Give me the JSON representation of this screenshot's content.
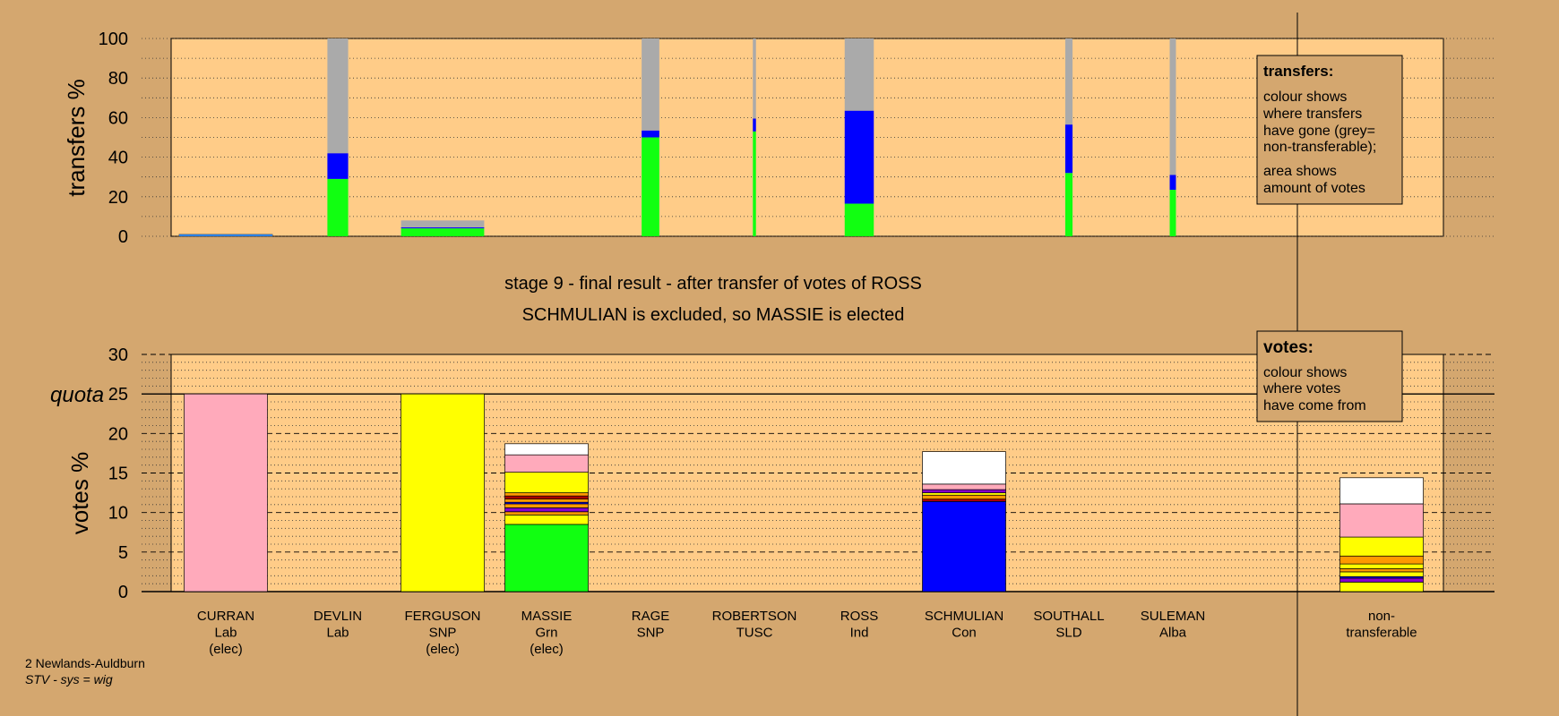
{
  "title_line1": "stage 9 - final result - after transfer of votes of ROSS",
  "title_line2": "SCHMULIAN is excluded, so MASSIE is elected",
  "footer": {
    "line1": "2 Newlands-Auldburn",
    "line2": "STV - sys = wig"
  },
  "legend_transfers": {
    "heading": "transfers:",
    "lines": [
      "colour shows",
      "where transfers",
      "have gone (grey=",
      "non-transferable);",
      "area shows",
      "amount of votes"
    ]
  },
  "legend_votes": {
    "heading": "votes:",
    "lines": [
      "colour shows",
      "where votes",
      "have come from"
    ]
  },
  "colors": {
    "background": "#d4a76f",
    "plot_bg": "#ffcc88",
    "Lab": "#ffaabb",
    "SNP": "#ffff00",
    "Grn": "#11ff11",
    "Con": "#0000ff",
    "Ind": "#ffffff",
    "Alba": "#8800cc",
    "SLD": "#ff9900",
    "TUSC": "#aa0000",
    "nontransferable": "#aaaaaa",
    "ross": "#2288ff"
  },
  "chart_data": [
    {
      "type": "bar",
      "ylabel": "transfers %",
      "ylim": [
        0,
        100
      ],
      "yticks": [
        0,
        20,
        40,
        60,
        80,
        100
      ],
      "grid": "dotted",
      "candidates": [
        "CURRAN",
        "DEVLIN",
        "FERGUSON",
        "MASSIE",
        "RAGE",
        "ROBERTSON",
        "ROSS",
        "SCHMULIAN",
        "SOUTHALL",
        "SULEMAN"
      ],
      "bars": [
        {
          "candidate": "CURRAN",
          "width_rel": 0.9,
          "segments": [
            {
              "color": "ross",
              "value": 1
            }
          ]
        },
        {
          "candidate": "DEVLIN",
          "width_rel": 0.2,
          "segments": [
            {
              "color": "Grn",
              "value": 29
            },
            {
              "color": "Con",
              "value": 13
            },
            {
              "color": "nontransferable",
              "value": 58
            }
          ]
        },
        {
          "candidate": "FERGUSON",
          "width_rel": 0.8,
          "segments": [
            {
              "color": "Grn",
              "value": 4
            },
            {
              "color": "Con",
              "value": 0.5
            },
            {
              "color": "nontransferable",
              "value": 3.5
            }
          ]
        },
        {
          "candidate": "RAGE",
          "width_rel": 0.17,
          "segments": [
            {
              "color": "Grn",
              "value": 50
            },
            {
              "color": "Con",
              "value": 3.5
            },
            {
              "color": "nontransferable",
              "value": 46.5
            }
          ]
        },
        {
          "candidate": "ROBERTSON",
          "width_rel": 0.03,
          "segments": [
            {
              "color": "Grn",
              "value": 53
            },
            {
              "color": "Con",
              "value": 6.5
            },
            {
              "color": "nontransferable",
              "value": 40.5
            }
          ]
        },
        {
          "candidate": "ROSS",
          "width_rel": 0.28,
          "segments": [
            {
              "color": "Grn",
              "value": 16.5
            },
            {
              "color": "Con",
              "value": 47
            },
            {
              "color": "nontransferable",
              "value": 36.5
            }
          ]
        },
        {
          "candidate": "SOUTHALL",
          "width_rel": 0.07,
          "segments": [
            {
              "color": "Grn",
              "value": 32
            },
            {
              "color": "Con",
              "value": 24.5
            },
            {
              "color": "nontransferable",
              "value": 43.5
            }
          ]
        },
        {
          "candidate": "SULEMAN",
          "width_rel": 0.06,
          "segments": [
            {
              "color": "Grn",
              "value": 23.5
            },
            {
              "color": "Con",
              "value": 7.5
            },
            {
              "color": "nontransferable",
              "value": 69
            }
          ]
        }
      ]
    },
    {
      "type": "bar",
      "ylabel": "votes %",
      "ylim": [
        0,
        30
      ],
      "yticks": [
        0,
        5,
        10,
        15,
        20,
        25,
        30
      ],
      "quota": 25,
      "quota_label": "quota",
      "grid": "dotted",
      "categories": [
        {
          "name": "CURRAN",
          "party": "Lab",
          "status": "(elec)"
        },
        {
          "name": "DEVLIN",
          "party": "Lab",
          "status": ""
        },
        {
          "name": "FERGUSON",
          "party": "SNP",
          "status": "(elec)"
        },
        {
          "name": "MASSIE",
          "party": "Grn",
          "status": "(elec)"
        },
        {
          "name": "RAGE",
          "party": "SNP",
          "status": ""
        },
        {
          "name": "ROBERTSON",
          "party": "TUSC",
          "status": ""
        },
        {
          "name": "ROSS",
          "party": "Ind",
          "status": ""
        },
        {
          "name": "SCHMULIAN",
          "party": "Con",
          "status": ""
        },
        {
          "name": "SOUTHALL",
          "party": "SLD",
          "status": ""
        },
        {
          "name": "SULEMAN",
          "party": "Alba",
          "status": ""
        },
        {
          "name": "non-",
          "party": "transferable",
          "status": ""
        }
      ],
      "stacks": [
        {
          "category": "CURRAN",
          "segments": [
            {
              "color": "Lab",
              "value": 25
            }
          ]
        },
        {
          "category": "DEVLIN",
          "segments": []
        },
        {
          "category": "FERGUSON",
          "segments": [
            {
              "color": "SNP",
              "value": 25
            }
          ]
        },
        {
          "category": "MASSIE",
          "segments": [
            {
              "color": "Grn",
              "value": 8.5
            },
            {
              "color": "SNP",
              "value": 1.2
            },
            {
              "color": "SLD",
              "value": 0.4
            },
            {
              "color": "Alba",
              "value": 0.5
            },
            {
              "color": "SLD",
              "value": 0.5
            },
            {
              "color": "Con",
              "value": 0.2
            },
            {
              "color": "SLD",
              "value": 0.4
            },
            {
              "color": "TUSC",
              "value": 0.4
            },
            {
              "color": "SLD",
              "value": 0.4
            },
            {
              "color": "SNP",
              "value": 2.6
            },
            {
              "color": "Lab",
              "value": 2.2
            },
            {
              "color": "Ind",
              "value": 1.4
            }
          ]
        },
        {
          "category": "RAGE",
          "segments": []
        },
        {
          "category": "ROBERTSON",
          "segments": []
        },
        {
          "category": "ROSS",
          "segments": []
        },
        {
          "category": "SCHMULIAN",
          "segments": [
            {
              "color": "Con",
              "value": 11.4
            },
            {
              "color": "TUSC",
              "value": 0.3
            },
            {
              "color": "SLD",
              "value": 0.5
            },
            {
              "color": "SNP",
              "value": 0.3
            },
            {
              "color": "Alba",
              "value": 0.4
            },
            {
              "color": "Lab",
              "value": 0.7
            },
            {
              "color": "Ind",
              "value": 4.1
            }
          ]
        },
        {
          "category": "SOUTHALL",
          "segments": []
        },
        {
          "category": "SULEMAN",
          "segments": []
        },
        {
          "category": "non-",
          "segments": [
            {
              "color": "SNP",
              "value": 1.2
            },
            {
              "color": "Alba",
              "value": 0.5
            },
            {
              "color": "Con",
              "value": 0.2
            },
            {
              "color": "SNP",
              "value": 0.6
            },
            {
              "color": "SLD",
              "value": 0.4
            },
            {
              "color": "SNP",
              "value": 0.6
            },
            {
              "color": "SLD",
              "value": 1.0
            },
            {
              "color": "SNP",
              "value": 2.4
            },
            {
              "color": "Lab",
              "value": 4.2
            },
            {
              "color": "Ind",
              "value": 3.3
            }
          ]
        }
      ]
    }
  ]
}
